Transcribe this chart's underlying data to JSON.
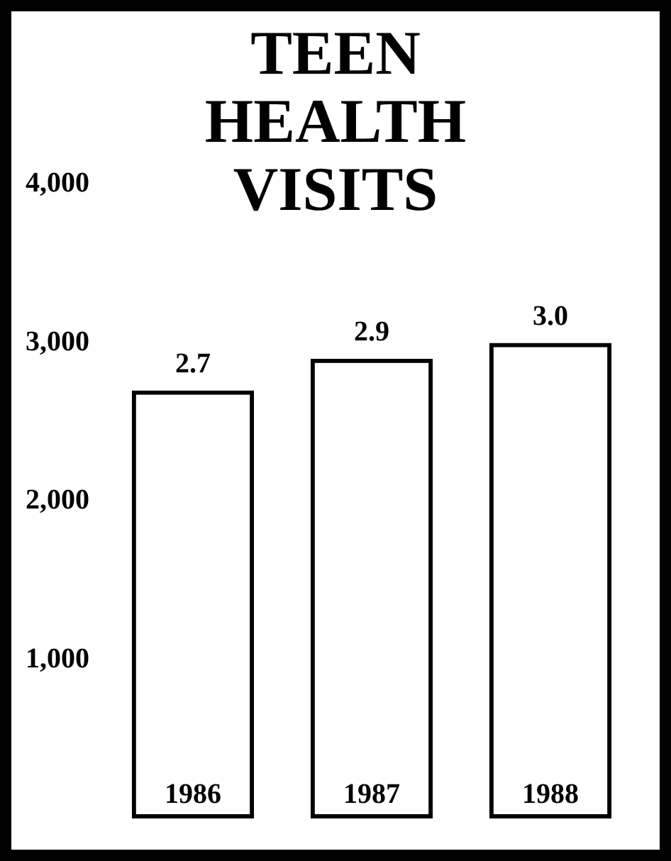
{
  "chart_data": {
    "type": "bar",
    "title": "TEEN HEALTH VISITS",
    "categories": [
      "1986",
      "1987",
      "1988"
    ],
    "values": [
      2700,
      2900,
      3000
    ],
    "color": "#000000",
    "annotations": [
      {
        "text": "2.7",
        "x": "1986",
        "y": 2700
      },
      {
        "text": "2.9",
        "x": "1987",
        "y": 2900
      },
      {
        "text": "3.0",
        "x": "1988",
        "y": 3000
      }
    ],
    "ylim": [
      0,
      4000
    ],
    "yticks": [
      {
        "value": 1000,
        "label": "1,000"
      },
      {
        "value": 2000,
        "label": "2,000"
      },
      {
        "value": 3000,
        "label": "3,000"
      },
      {
        "value": 4000,
        "label": "4,000"
      }
    ],
    "grid": false,
    "legend": false
  }
}
